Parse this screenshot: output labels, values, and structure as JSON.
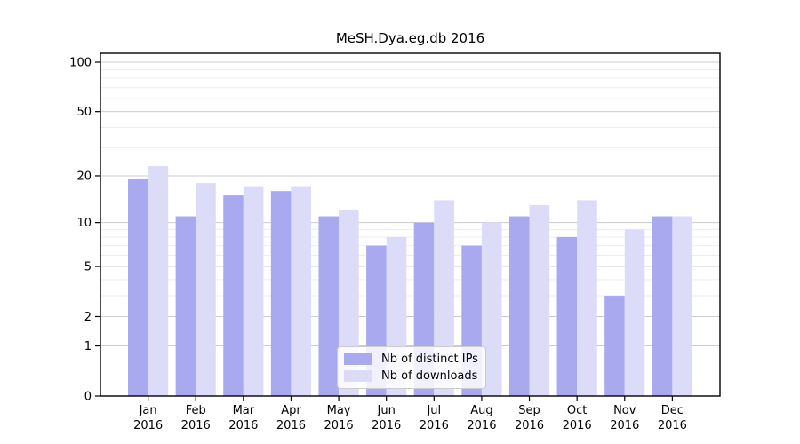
{
  "chart_data": {
    "type": "bar",
    "title": "MeSH.Dya.eg.db 2016",
    "xlabel": "",
    "ylabel": "",
    "year": "2016",
    "categories": [
      "Jan 2016",
      "Feb 2016",
      "Mar 2016",
      "Apr 2016",
      "May 2016",
      "Jun 2016",
      "Jul 2016",
      "Aug 2016",
      "Sep 2016",
      "Oct 2016",
      "Nov 2016",
      "Dec 2016"
    ],
    "series": [
      {
        "name": "Nb of distinct IPs",
        "color": "#a9a9f0",
        "values": [
          19,
          11,
          15,
          16,
          11,
          7,
          10,
          7,
          11,
          8,
          3,
          11
        ]
      },
      {
        "name": "Nb of downloads",
        "color": "#dcdcf8",
        "values": [
          23,
          18,
          17,
          17,
          12,
          8,
          14,
          10,
          13,
          14,
          9,
          11
        ]
      }
    ],
    "yscale": "log1p",
    "ylim": [
      0,
      100
    ],
    "ytick_labels": [
      "100",
      "50",
      "20",
      "10",
      "5",
      "2",
      "1",
      "0"
    ],
    "yticks_major": [
      100,
      50,
      20,
      10,
      5,
      2,
      1
    ],
    "gridlines_minor": [
      90,
      80,
      70,
      60,
      40,
      30,
      9,
      8,
      7,
      6,
      4,
      3
    ],
    "grid": "horizontal",
    "legend_position": "bottom-center"
  },
  "colors": {
    "grid_major": "#cccccc",
    "grid_minor": "#ededed",
    "spine": "#000000",
    "text": "#000000"
  }
}
